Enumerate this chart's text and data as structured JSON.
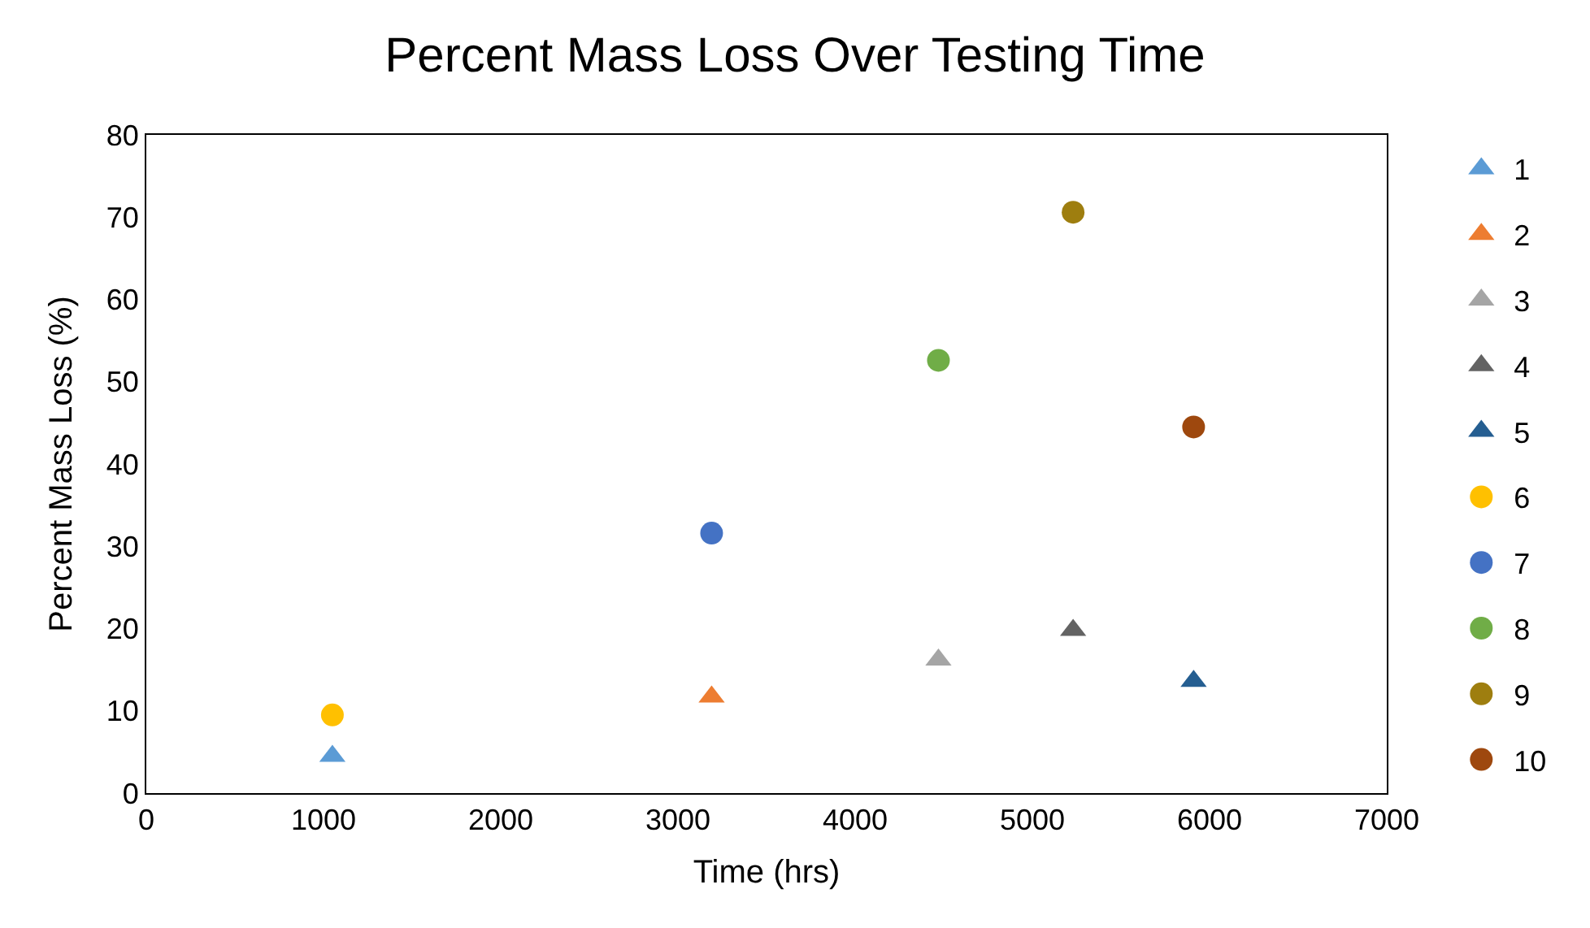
{
  "chart_data": {
    "type": "scatter",
    "title": "Percent Mass Loss Over Testing Time",
    "xlabel": "Time (hrs)",
    "ylabel": "Percent Mass Loss (%)",
    "xlim": [
      0,
      7000
    ],
    "xticks": [
      0,
      1000,
      2000,
      3000,
      4000,
      5000,
      6000,
      7000
    ],
    "ylim": [
      0,
      80
    ],
    "yticks": [
      0,
      10,
      20,
      30,
      40,
      50,
      60,
      70,
      80
    ],
    "legend": "right",
    "series": [
      {
        "name": "1",
        "color": "#5b9bd5",
        "marker": "triangle",
        "x": [
          1050
        ],
        "values": [
          4.5
        ]
      },
      {
        "name": "2",
        "color": "#ed7d31",
        "marker": "triangle",
        "x": [
          3190
        ],
        "values": [
          11.7
        ]
      },
      {
        "name": "3",
        "color": "#a5a5a5",
        "marker": "triangle",
        "x": [
          4470
        ],
        "values": [
          16.2
        ]
      },
      {
        "name": "4",
        "color": "#636363",
        "marker": "triangle",
        "x": [
          5230
        ],
        "values": [
          19.8
        ]
      },
      {
        "name": "5",
        "color": "#255e91",
        "marker": "triangle",
        "x": [
          5910
        ],
        "values": [
          13.6
        ]
      },
      {
        "name": "6",
        "color": "#ffc000",
        "marker": "circle",
        "x": [
          1050
        ],
        "values": [
          9.5
        ]
      },
      {
        "name": "7",
        "color": "#4472c4",
        "marker": "circle",
        "x": [
          3190
        ],
        "values": [
          31.6
        ]
      },
      {
        "name": "8",
        "color": "#70ad47",
        "marker": "circle",
        "x": [
          4470
        ],
        "values": [
          52.6
        ]
      },
      {
        "name": "9",
        "color": "#9e7e0f",
        "marker": "circle",
        "x": [
          5230
        ],
        "values": [
          70.6
        ]
      },
      {
        "name": "10",
        "color": "#9e480e",
        "marker": "circle",
        "x": [
          5910
        ],
        "values": [
          44.5
        ]
      }
    ]
  }
}
